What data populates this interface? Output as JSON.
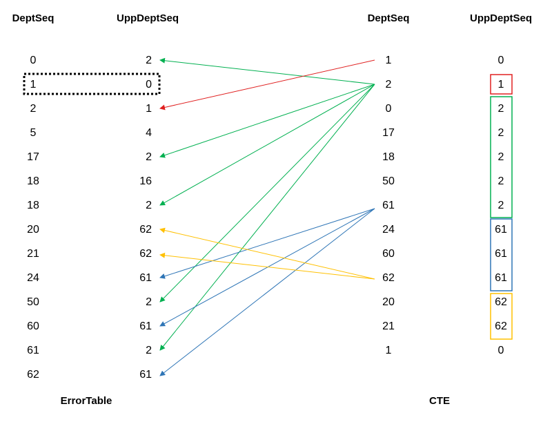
{
  "error_table": {
    "caption": "ErrorTable",
    "headers": [
      "DeptSeq",
      "UppDeptSeq"
    ],
    "rows": [
      [
        0,
        2
      ],
      [
        1,
        0
      ],
      [
        2,
        1
      ],
      [
        5,
        4
      ],
      [
        17,
        2
      ],
      [
        18,
        16
      ],
      [
        18,
        2
      ],
      [
        20,
        62
      ],
      [
        21,
        62
      ],
      [
        24,
        61
      ],
      [
        50,
        2
      ],
      [
        60,
        61
      ],
      [
        61,
        2
      ],
      [
        62,
        61
      ]
    ]
  },
  "cte": {
    "caption": "CTE",
    "headers": [
      "DeptSeq",
      "UppDeptSeq"
    ],
    "rows": [
      [
        1,
        0
      ],
      [
        2,
        1
      ],
      [
        0,
        2
      ],
      [
        17,
        2
      ],
      [
        18,
        2
      ],
      [
        50,
        2
      ],
      [
        61,
        2
      ],
      [
        24,
        61
      ],
      [
        60,
        61
      ],
      [
        62,
        61
      ],
      [
        20,
        62
      ],
      [
        21,
        62
      ],
      [
        1,
        0
      ]
    ]
  }
}
